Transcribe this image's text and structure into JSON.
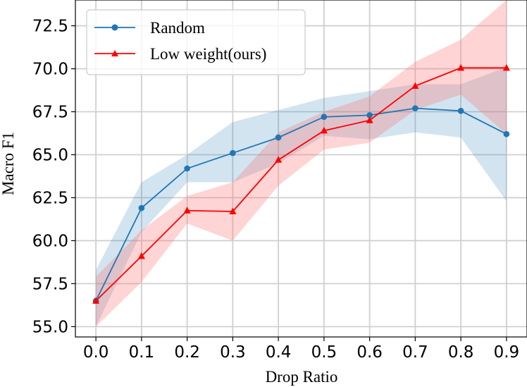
{
  "chart_data": {
    "type": "line",
    "title": "",
    "xlabel": "Drop Ratio",
    "ylabel": "Macro F1",
    "x": [
      0.0,
      0.1,
      0.2,
      0.3,
      0.4,
      0.5,
      0.6,
      0.7,
      0.8,
      0.9
    ],
    "x_tick_labels": [
      "0.0",
      "0.1",
      "0.2",
      "0.3",
      "0.4",
      "0.5",
      "0.6",
      "0.7",
      "0.8",
      "0.9"
    ],
    "xlim": [
      -0.045,
      0.945
    ],
    "y_ticks": [
      55.0,
      57.5,
      60.0,
      62.5,
      65.0,
      67.5,
      70.0,
      72.5
    ],
    "y_tick_labels": [
      "55.0",
      "57.5",
      "60.0",
      "62.5",
      "65.0",
      "67.5",
      "70.0",
      "72.5"
    ],
    "ylim": [
      54.4,
      74.0
    ],
    "grid": true,
    "legend_position": "top-left",
    "series": [
      {
        "name": "Random",
        "color": "#1f77b4",
        "band_color": "#1f77b4",
        "marker": "circle",
        "values": [
          56.5,
          61.9,
          64.2,
          65.1,
          66.0,
          67.2,
          67.3,
          67.7,
          67.55,
          66.2
        ],
        "band_upper": [
          58.3,
          63.4,
          65.0,
          66.9,
          67.6,
          68.3,
          68.7,
          69.1,
          69.1,
          70.1
        ],
        "band_lower": [
          55.0,
          60.5,
          63.4,
          63.4,
          64.5,
          66.1,
          65.9,
          66.3,
          66.0,
          62.3
        ]
      },
      {
        "name": "Low weight(ours)",
        "color": "#ff0000",
        "band_color": "#ff6f6f",
        "marker": "triangle",
        "values": [
          56.5,
          59.1,
          61.75,
          61.7,
          64.7,
          66.4,
          67.0,
          69.0,
          70.05,
          70.05
        ],
        "band_upper": [
          57.9,
          60.6,
          62.6,
          63.4,
          66.3,
          67.5,
          68.4,
          70.4,
          71.7,
          74.0
        ],
        "band_lower": [
          55.0,
          57.6,
          61.0,
          60.0,
          63.2,
          65.3,
          65.7,
          67.6,
          68.5,
          66.2
        ]
      }
    ]
  }
}
